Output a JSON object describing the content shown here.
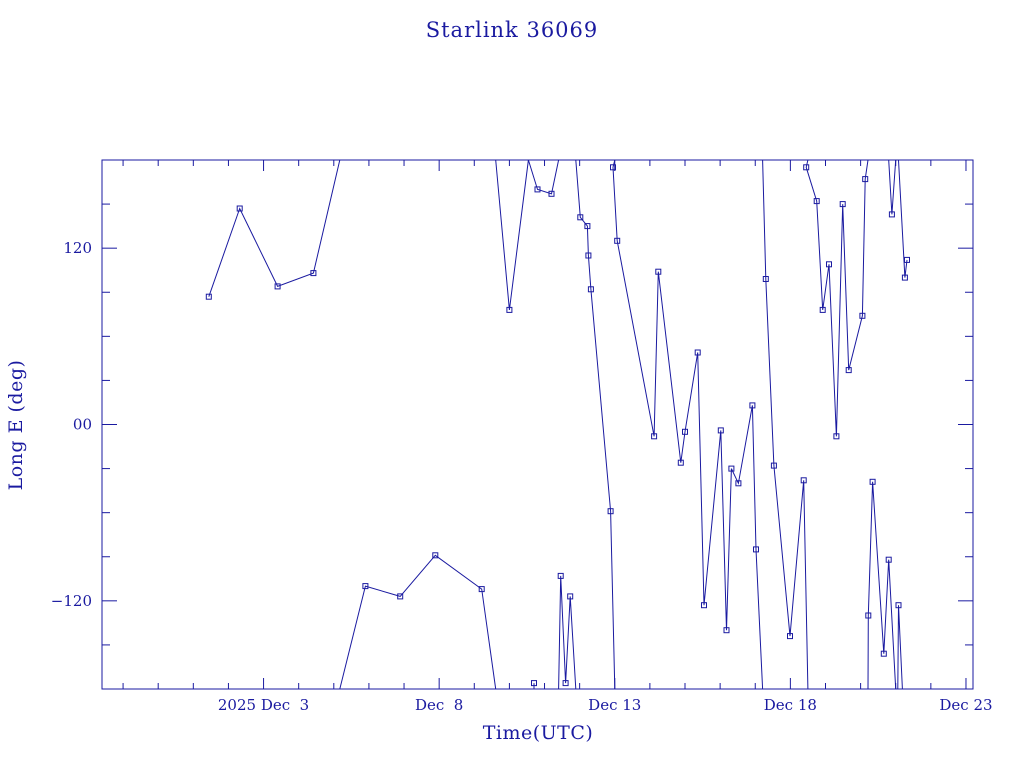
{
  "chart_data": {
    "type": "line",
    "title": "Starlink 36069",
    "xlabel": "Time(UTC)",
    "ylabel": "Long E (deg)",
    "x_unit": "day of December 2025",
    "xlim": [
      29.4,
      54.2
    ],
    "ylim": [
      -180,
      180
    ],
    "x_ticks": [
      {
        "value": 34,
        "label": "2025 Dec  3"
      },
      {
        "value": 39,
        "label": "Dec  8"
      },
      {
        "value": 44,
        "label": "Dec 13"
      },
      {
        "value": 49,
        "label": "Dec 18"
      },
      {
        "value": 54,
        "label": "Dec 23"
      }
    ],
    "y_ticks": [
      {
        "value": 120,
        "label": "120"
      },
      {
        "value": 0,
        "label": "00"
      },
      {
        "value": -120,
        "label": "−120"
      }
    ],
    "grid": false,
    "color": "#1a1aa0",
    "series": [
      {
        "segments": [
          [
            [
              32.44,
              87
            ],
            [
              33.32,
              147
            ],
            [
              34.4,
              94
            ],
            [
              35.42,
              103
            ],
            [
              36.17,
              180
            ]
          ],
          [
            [
              36.17,
              -180
            ],
            [
              36.9,
              -110
            ],
            [
              37.89,
              -117
            ],
            [
              38.89,
              -89
            ],
            [
              40.21,
              -112
            ],
            [
              40.61,
              -180
            ]
          ],
          [
            [
              40.61,
              180
            ],
            [
              41.0,
              78
            ],
            [
              41.54,
              180
            ]
          ],
          [
            [
              41.54,
              180
            ],
            [
              41.8,
              160
            ],
            [
              42.2,
              157
            ],
            [
              42.4,
              180
            ]
          ],
          [
            [
              41.7,
              -176
            ],
            [
              41.7,
              -180
            ]
          ],
          [
            [
              42.4,
              -180
            ],
            [
              42.46,
              -103
            ],
            [
              42.6,
              -176
            ],
            [
              42.73,
              -117
            ],
            [
              42.89,
              -180
            ]
          ],
          [
            [
              42.89,
              180
            ],
            [
              43.02,
              141
            ],
            [
              43.22,
              135
            ],
            [
              43.25,
              115
            ],
            [
              43.32,
              92
            ],
            [
              43.88,
              -59
            ],
            [
              44.0,
              -180
            ]
          ],
          [
            [
              44.0,
              180
            ],
            [
              43.95,
              175
            ],
            [
              44.07,
              125
            ],
            [
              45.12,
              -8
            ],
            [
              45.24,
              104
            ],
            [
              45.88,
              -26
            ],
            [
              46.0,
              -5
            ],
            [
              46.36,
              49
            ],
            [
              46.54,
              -123
            ],
            [
              47.02,
              -4
            ],
            [
              47.18,
              -140
            ],
            [
              47.32,
              -30
            ],
            [
              47.52,
              -40
            ],
            [
              47.92,
              13
            ],
            [
              48.02,
              -85
            ],
            [
              48.21,
              -180
            ]
          ],
          [
            [
              48.21,
              180
            ],
            [
              48.3,
              99
            ],
            [
              48.53,
              -28
            ],
            [
              48.99,
              -144
            ],
            [
              49.38,
              -38
            ],
            [
              49.5,
              -180
            ]
          ],
          [
            [
              49.5,
              180
            ],
            [
              49.45,
              175
            ],
            [
              49.75,
              152
            ],
            [
              49.92,
              78
            ],
            [
              50.1,
              109
            ],
            [
              50.31,
              -8
            ],
            [
              50.49,
              150
            ],
            [
              50.66,
              37
            ],
            [
              51.05,
              74
            ],
            [
              51.13,
              167
            ],
            [
              51.21,
              180
            ]
          ],
          [
            [
              51.21,
              -180
            ],
            [
              51.22,
              -130
            ],
            [
              51.34,
              -39
            ],
            [
              51.66,
              -156
            ],
            [
              51.8,
              -92
            ],
            [
              52.0,
              -180
            ]
          ],
          [
            [
              51.7,
              180
            ],
            [
              51.8,
              180
            ],
            [
              51.89,
              143
            ],
            [
              52.0,
              180
            ]
          ],
          [
            [
              52.06,
              -180
            ],
            [
              52.08,
              -123
            ],
            [
              52.19,
              -180
            ]
          ],
          [
            [
              52.08,
              180
            ],
            [
              52.26,
              100
            ],
            [
              52.32,
              112
            ]
          ]
        ]
      }
    ]
  }
}
